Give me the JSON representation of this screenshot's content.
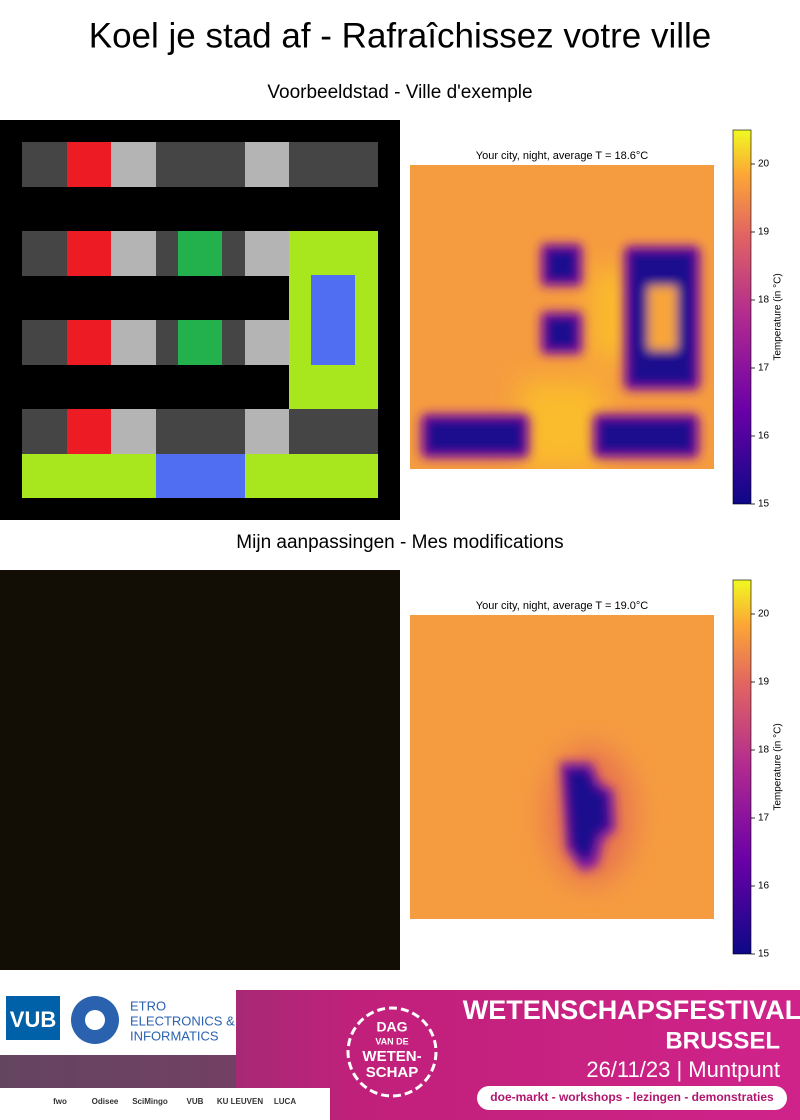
{
  "header": {
    "title": "Koel je stad af - Rafraîchissez votre ville"
  },
  "sections": [
    {
      "subtitle": "Voorbeeldstad - Ville d'exemple",
      "heatmap": {
        "title": "Your city, night, average T = 18.6°C"
      },
      "colorbar": {
        "label": "Temperature (in °C)",
        "lim": [
          15,
          20.5
        ],
        "ticks": [
          15,
          16,
          17,
          18,
          19,
          20
        ]
      }
    },
    {
      "subtitle": "Mijn aanpassingen - Mes modifications",
      "heatmap": {
        "title": "Your city, night, average T = 19.0°C"
      },
      "colorbar": {
        "label": "Temperature (in °C)",
        "lim": [
          15,
          20.5
        ],
        "ticks": [
          15,
          16,
          17,
          18,
          19,
          20
        ]
      }
    }
  ],
  "banner": {
    "vub": "VUB",
    "etro": [
      "ETRO",
      "ELECTRONICS &",
      "INFORMATICS"
    ],
    "badge": [
      "DAG",
      "VAN DE",
      "WETEN-",
      "SCHAP"
    ],
    "festival": "WETENSCHAPSFESTIVAL",
    "city": "BRUSSEL",
    "date": "26/11/23 | Muntpunt",
    "tagline": "doe-markt - workshops - lezingen - demonstraties",
    "logos": [
      "fwo",
      "Odisee",
      "SciMingo",
      "VUB",
      "KU LEUVEN",
      "LUCA"
    ]
  }
}
